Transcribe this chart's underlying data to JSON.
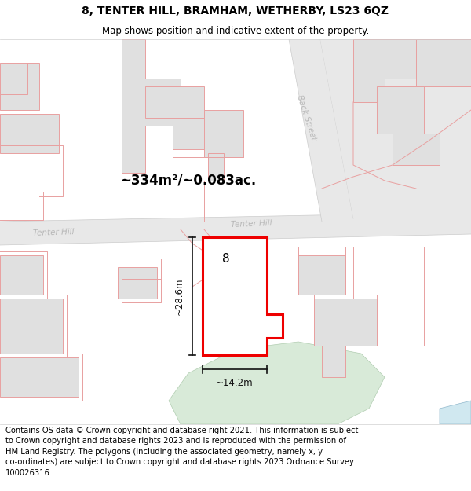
{
  "title": "8, TENTER HILL, BRAMHAM, WETHERBY, LS23 6QZ",
  "subtitle": "Map shows position and indicative extent of the property.",
  "footer_line1": "Contains OS data © Crown copyright and database right 2021. This information is subject",
  "footer_line2": "to Crown copyright and database rights 2023 and is reproduced with the permission of",
  "footer_line3": "HM Land Registry. The polygons (including the associated geometry, namely x, y",
  "footer_line4": "co-ordinates) are subject to Crown copyright and database rights 2023 Ordnance Survey",
  "footer_line5": "100026316.",
  "area_label": "~334m²/~0.083ac.",
  "street_tenter_top": "Tenter Hill",
  "street_tenter_left": "Tenter Hill",
  "street_back": "Back Street",
  "width_label": "~14.2m",
  "height_label": "~28.6m",
  "prop_num": "8",
  "bg_color": "#f7f7f7",
  "road_fill": "#e8e8e8",
  "road_fill2": "#e0e0e0",
  "building_fill": "#e0e0e0",
  "building_stroke": "#e8a0a0",
  "prop_fill": "#ffffff",
  "prop_stroke": "#ee0000",
  "green_fill": "#d8ead8",
  "green_stroke": "#b0ccb0",
  "blue_fill": "#d0e8f0",
  "dim_color": "#111111",
  "street_color": "#b8b8b8",
  "pink_line": "#e8a0a0",
  "title_fs": 10,
  "subtitle_fs": 8.5,
  "footer_fs": 7.2,
  "area_fs": 12,
  "propnum_fs": 11,
  "street_fs": 7.5,
  "dim_fs": 8.5
}
